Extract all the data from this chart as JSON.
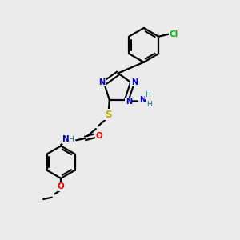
{
  "background_color": "#ebebeb",
  "bond_color": "#000000",
  "atom_colors": {
    "N": "#0000cc",
    "S": "#bbaa00",
    "O": "#ff0000",
    "Cl": "#00bb00",
    "H": "#007777",
    "C": "#000000"
  },
  "figsize": [
    3.0,
    3.0
  ],
  "dpi": 100
}
